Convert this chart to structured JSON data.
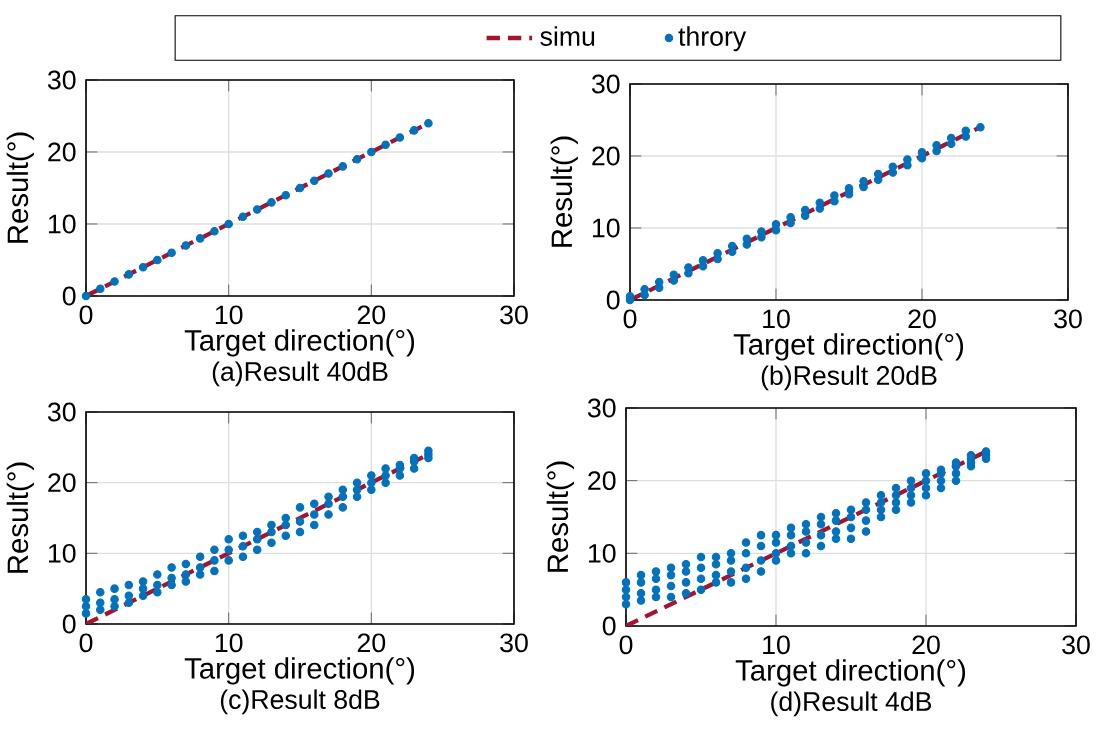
{
  "chart_data": [
    {
      "type": "scatter",
      "marker": "circle",
      "title": "(a)Result 40dB",
      "xlabel": "Target direction(°)",
      "ylabel": "Result(°)",
      "xlim": [
        0,
        30
      ],
      "ylim": [
        0,
        30
      ],
      "xticks": [
        0,
        10,
        20,
        30
      ],
      "yticks": [
        0,
        10,
        20,
        30
      ],
      "grid": true,
      "legend": "top",
      "series": [
        {
          "name": "simu",
          "type": "line",
          "marker": "none",
          "line_style": "dashed",
          "color": "#a2142f",
          "x": [
            0,
            24
          ],
          "values": [
            0,
            24
          ]
        },
        {
          "name": "throry",
          "color": "#0072bd",
          "x": [
            0,
            1,
            2,
            3,
            4,
            5,
            6,
            7,
            8,
            9,
            10,
            11,
            12,
            13,
            14,
            15,
            16,
            17,
            18,
            19,
            20,
            21,
            22,
            23,
            24
          ],
          "values": [
            0,
            1,
            2,
            3,
            4,
            5,
            6,
            7,
            8,
            9,
            10,
            11,
            12,
            13,
            14,
            15,
            16,
            17,
            18,
            19,
            20,
            21,
            22,
            23,
            24
          ]
        }
      ]
    },
    {
      "type": "scatter",
      "marker": "circle",
      "title": "(b)Result 20dB",
      "xlabel": "Target direction(°)",
      "ylabel": "Result(°)",
      "xlim": [
        0,
        30
      ],
      "ylim": [
        0,
        30
      ],
      "xticks": [
        0,
        10,
        20,
        30
      ],
      "yticks": [
        0,
        10,
        20,
        30
      ],
      "grid": true,
      "series": [
        {
          "type": "line",
          "marker": "none",
          "line_style": "dashed",
          "color": "#a2142f",
          "x": [
            0,
            24
          ],
          "values": [
            0,
            24
          ]
        },
        {
          "color": "#0072bd",
          "x": [
            0,
            0,
            1,
            1,
            2,
            2,
            3,
            3,
            4,
            4,
            5,
            5,
            6,
            6,
            7,
            7,
            8,
            8,
            9,
            9,
            10,
            10,
            11,
            11,
            12,
            12,
            13,
            13,
            14,
            14,
            15,
            15,
            16,
            16,
            17,
            17,
            18,
            18,
            19,
            19,
            20,
            20,
            21,
            21,
            22,
            22,
            23,
            23,
            24
          ],
          "values": [
            0,
            0.5,
            0.7,
            1.5,
            1.7,
            2.5,
            2.7,
            3.5,
            3.7,
            4.5,
            4.7,
            5.5,
            5.7,
            6.5,
            6.7,
            7.5,
            7.7,
            8.5,
            8.7,
            9.5,
            9.7,
            10.5,
            10.7,
            11.5,
            11.7,
            12.5,
            12.7,
            13.5,
            13.7,
            14.5,
            14.7,
            15.5,
            15.7,
            16.5,
            16.7,
            17.5,
            17.7,
            18.5,
            18.7,
            19.5,
            19.7,
            20.5,
            20.7,
            21.5,
            21.7,
            22.5,
            22.7,
            23.5,
            24
          ]
        }
      ]
    },
    {
      "type": "scatter",
      "marker": "circle",
      "title": "(c)Result 8dB",
      "xlabel": "Target direction(°)",
      "ylabel": "Result(°)",
      "xlim": [
        0,
        30
      ],
      "ylim": [
        0,
        30
      ],
      "xticks": [
        0,
        10,
        20,
        30
      ],
      "yticks": [
        0,
        10,
        20,
        30
      ],
      "grid": true,
      "series": [
        {
          "type": "line",
          "marker": "none",
          "line_style": "dashed",
          "color": "#a2142f",
          "x": [
            0,
            24
          ],
          "values": [
            0,
            24
          ]
        },
        {
          "color": "#0072bd",
          "x": [
            0,
            0,
            0,
            1,
            1,
            1,
            2,
            2,
            2,
            3,
            3,
            3,
            4,
            4,
            4,
            5,
            5,
            5,
            6,
            6,
            6,
            7,
            7,
            7,
            8,
            8,
            8,
            9,
            9,
            9,
            10,
            10,
            10,
            11,
            11,
            11,
            12,
            12,
            12,
            13,
            13,
            13,
            14,
            14,
            14,
            15,
            15,
            15,
            16,
            16,
            16,
            17,
            17,
            17,
            18,
            18,
            18,
            19,
            19,
            19,
            20,
            20,
            20,
            21,
            21,
            21,
            22,
            22,
            22,
            23,
            23,
            23,
            24,
            24,
            24
          ],
          "values": [
            1.5,
            2.5,
            3.5,
            2,
            3,
            4.5,
            2.5,
            3.5,
            5,
            3,
            4,
            5.5,
            4,
            5,
            6,
            4.5,
            5.5,
            7,
            5.5,
            6.5,
            8,
            6,
            7,
            8.5,
            7,
            8,
            9.5,
            7.5,
            9,
            10.5,
            9,
            10.5,
            12,
            9.5,
            11,
            12.5,
            10.5,
            12,
            13,
            11.5,
            13,
            14,
            12.5,
            14,
            15,
            13,
            14.5,
            16.5,
            14,
            15.5,
            17,
            15.5,
            17,
            18,
            16.5,
            18,
            19,
            18,
            19,
            20,
            19,
            20,
            21,
            20,
            21,
            22,
            21,
            22,
            22.5,
            22,
            23,
            23.5,
            23.5,
            24,
            24.5
          ]
        }
      ]
    },
    {
      "type": "scatter",
      "marker": "circle",
      "title": "(d)Result 4dB",
      "xlabel": "Target direction(°)",
      "ylabel": "Result(°)",
      "xlim": [
        0,
        30
      ],
      "ylim": [
        0,
        30
      ],
      "xticks": [
        0,
        10,
        20,
        30
      ],
      "yticks": [
        0,
        10,
        20,
        30
      ],
      "grid": true,
      "series": [
        {
          "type": "line",
          "marker": "none",
          "line_style": "dashed",
          "color": "#a2142f",
          "x": [
            0,
            24
          ],
          "values": [
            0,
            24
          ]
        },
        {
          "color": "#0072bd",
          "x": [
            0,
            0,
            0,
            0,
            1,
            1,
            1,
            1,
            2,
            2,
            2,
            2,
            3,
            3,
            3,
            3,
            4,
            4,
            4,
            4,
            5,
            5,
            5,
            5,
            6,
            6,
            6,
            6,
            7,
            7,
            7,
            7,
            8,
            8,
            8,
            8,
            9,
            9,
            9,
            9,
            10,
            10,
            10,
            10,
            11,
            11,
            11,
            11,
            12,
            12,
            12,
            12,
            13,
            13,
            13,
            13,
            14,
            14,
            14,
            14,
            15,
            15,
            15,
            15,
            16,
            16,
            16,
            16,
            17,
            17,
            17,
            17,
            18,
            18,
            18,
            18,
            19,
            19,
            19,
            19,
            20,
            20,
            20,
            20,
            21,
            21,
            21,
            21,
            22,
            22,
            22,
            22,
            23,
            23,
            23,
            23,
            24,
            24,
            24
          ],
          "values": [
            3,
            4,
            5,
            6,
            3.5,
            4.5,
            6,
            7,
            4,
            5,
            6.5,
            7.5,
            4,
            5.5,
            7,
            8,
            4.5,
            6,
            7.5,
            8.5,
            5,
            6.5,
            8,
            9.5,
            6,
            7,
            8.5,
            9.5,
            6,
            7.5,
            9,
            10,
            6.5,
            8,
            10,
            11.5,
            7.5,
            9,
            11,
            12.5,
            9,
            10,
            11.5,
            12.5,
            10,
            11,
            12.5,
            13.5,
            10,
            11.5,
            13,
            14,
            11,
            12.5,
            14,
            15,
            12,
            13,
            14.5,
            15.5,
            12,
            13.5,
            15,
            16,
            13,
            14.5,
            16,
            17,
            15,
            16,
            17,
            18,
            16,
            17,
            18,
            19,
            17,
            18,
            19,
            20,
            18,
            19,
            20,
            21,
            19,
            20,
            21,
            21.5,
            20,
            21,
            22,
            22.5,
            22,
            22.5,
            23,
            23.5,
            23,
            23.5,
            24
          ]
        }
      ]
    }
  ]
}
